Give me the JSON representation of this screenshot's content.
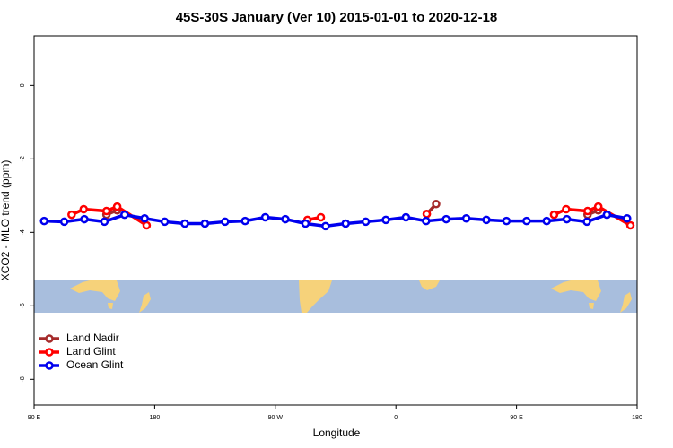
{
  "chart_data": {
    "type": "line",
    "title": "45S-30S January (Ver 10)   2015-01-01 to 2020-12-18",
    "x_label": "Longitude",
    "y_label": "XCO2 - MLO trend (ppm)",
    "xlim": [
      90,
      540
    ],
    "ylim": [
      -8.7,
      1.35
    ],
    "xticks": [
      {
        "value": 90,
        "label": "90 E"
      },
      180,
      {
        "value": 270,
        "label": "90 W"
      },
      {
        "value": 360,
        "label": "0"
      },
      {
        "value": 450,
        "label": "90 E"
      },
      {
        "value": 540,
        "label": "180"
      }
    ],
    "yticks": [
      0,
      -2,
      -4,
      -6,
      -8
    ],
    "legend": "bottom-left",
    "series": [
      {
        "name": "Land Nadir",
        "color": "#a52a2a",
        "x": [
          144,
          152,
          null,
          383,
          390,
          null,
          503,
          511
        ],
        "values": [
          -3.52,
          -3.4,
          null,
          -3.5,
          -3.23,
          null,
          -3.52,
          -3.4
        ]
      },
      {
        "name": "Land Glint",
        "color": "#ff0000",
        "x": [
          118,
          127,
          144,
          152,
          174,
          null,
          294,
          304,
          null,
          383,
          null,
          478,
          487,
          503,
          511,
          535
        ],
        "values": [
          -3.52,
          -3.37,
          -3.42,
          -3.3,
          -3.81,
          null,
          -3.66,
          -3.59,
          null,
          -3.5,
          null,
          -3.52,
          -3.37,
          -3.42,
          -3.3,
          -3.81
        ]
      },
      {
        "name": "Ocean Glint",
        "color": "#0000ee",
        "x": [
          97.5,
          112.5,
          127.5,
          142.5,
          157.5,
          172.5,
          187.5,
          202.5,
          217.5,
          232.5,
          247.5,
          262.5,
          277.5,
          292.5,
          307.5,
          322.5,
          337.5,
          352.5,
          367.5,
          382.5,
          397.5,
          412.5,
          427.5,
          442.5,
          457.5,
          472.5,
          487.5,
          502.5,
          517.5,
          532.5
        ],
        "values": [
          -3.69,
          -3.71,
          -3.64,
          -3.71,
          -3.52,
          -3.62,
          -3.71,
          -3.76,
          -3.76,
          -3.71,
          -3.69,
          -3.59,
          -3.64,
          -3.76,
          -3.83,
          -3.76,
          -3.71,
          -3.66,
          -3.59,
          -3.69,
          -3.64,
          -3.62,
          -3.66,
          -3.69,
          -3.69,
          -3.69,
          -3.64,
          -3.71,
          -3.52,
          -3.62
        ]
      }
    ]
  }
}
